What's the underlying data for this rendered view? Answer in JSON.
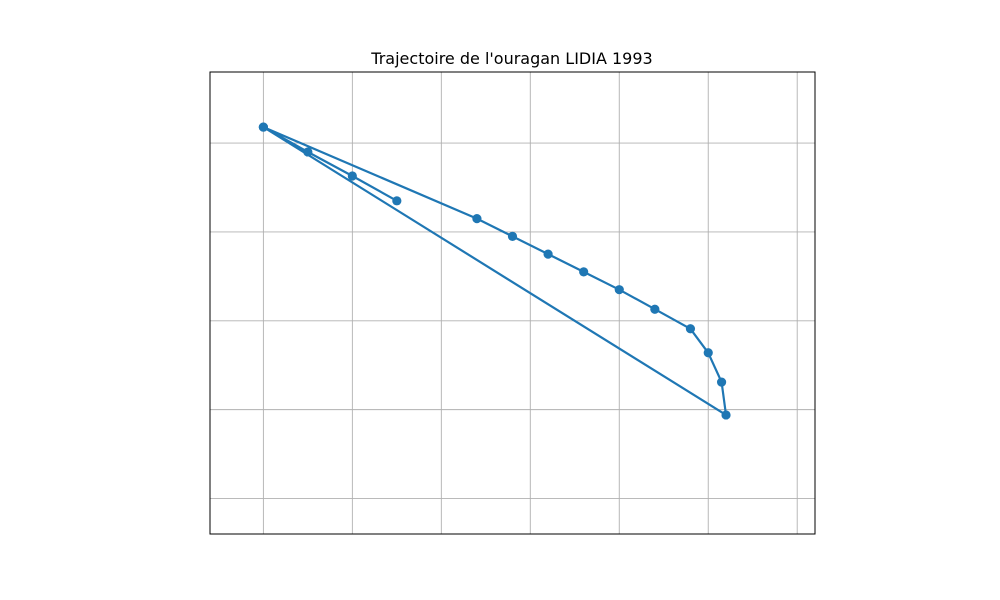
{
  "chart_data": {
    "type": "line",
    "title": "Trajectoire de l'ouragan LIDIA 1993",
    "xlabel": "",
    "ylabel": "",
    "xlim": [
      -116.9,
      -110.1
    ],
    "ylim": [
      16.6,
      21.8
    ],
    "x_grid": [
      -116.3,
      -115.3,
      -114.3,
      -113.3,
      -112.3,
      -111.3,
      -110.3
    ],
    "y_grid": [
      21.0,
      20.0,
      19.0,
      18.0,
      17.0
    ],
    "grid": true,
    "tick_labels_shown": false,
    "color": "#1f77b4",
    "series": [
      {
        "x": [
          -114.8,
          -115.3,
          -115.8,
          -116.3,
          -113.9,
          -113.5,
          -113.1,
          -112.7,
          -112.3,
          -111.9,
          -111.5,
          -111.3,
          -111.15,
          -111.1,
          -116.3
        ],
        "y": [
          20.35,
          20.63,
          20.9,
          21.18,
          20.15,
          19.95,
          19.75,
          19.55,
          19.35,
          19.13,
          18.91,
          18.64,
          18.31,
          17.94,
          21.18
        ]
      }
    ]
  }
}
